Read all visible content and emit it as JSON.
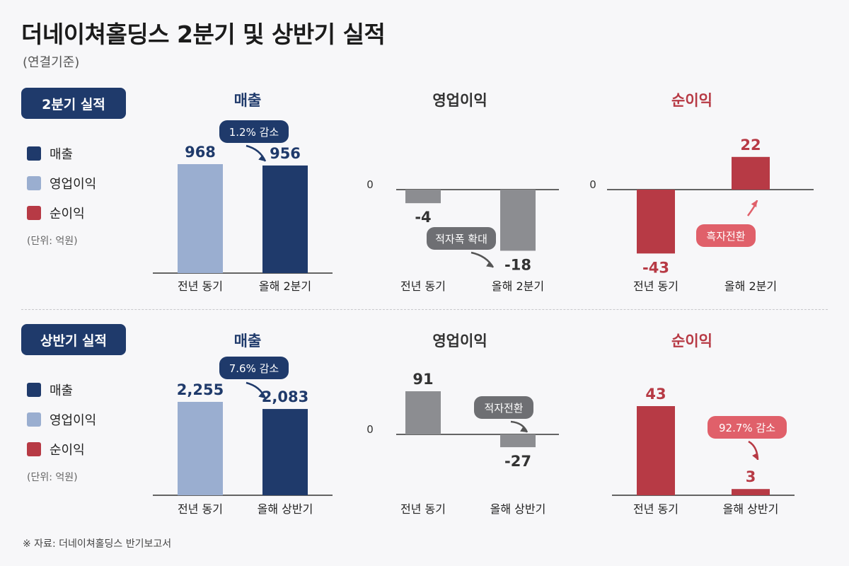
{
  "header": {
    "title": "더네이쳐홀딩스 2분기 및 상반기 실적",
    "subtitle": "(연결기준)"
  },
  "legend": [
    {
      "label": "매출",
      "color": "#1f3a6b"
    },
    {
      "label": "영업이익",
      "color": "#9aaed0"
    },
    {
      "label": "순이익",
      "color": "#b73a45"
    }
  ],
  "unit_label": "(단위: 억원)",
  "source": "※ 자료: 더네이쳐홀딩스 반기보고서",
  "colors": {
    "revenue_prev": "#9aaed0",
    "revenue_curr": "#1f3a6b",
    "op_gray": "#8c8d91",
    "net_red": "#b73a45",
    "callout_navy": "#1f3a6b",
    "callout_gray": "#6e6f73",
    "callout_red": "#e0606a"
  },
  "sections": [
    {
      "badge": "2분기 실적",
      "charts": [
        {
          "title": "매출",
          "title_color": "#1f3a6b",
          "callout": "1.2% 감소"
        },
        {
          "title": "영업이익",
          "title_color": "#333333",
          "callout": "적자폭 확대"
        },
        {
          "title": "순이익",
          "title_color": "#b73a45",
          "callout": "흑자전환"
        }
      ]
    },
    {
      "badge": "상반기 실적",
      "charts": [
        {
          "title": "매출",
          "title_color": "#1f3a6b",
          "callout": "7.6% 감소"
        },
        {
          "title": "영업이익",
          "title_color": "#333333",
          "callout": "적자전환"
        },
        {
          "title": "순이익",
          "title_color": "#b73a45",
          "callout": "92.7% 감소"
        }
      ]
    }
  ],
  "chart_data": [
    {
      "type": "bar",
      "title": "매출",
      "categories": [
        "전년 동기",
        "올해 2분기"
      ],
      "values": [
        968,
        956
      ],
      "labels": [
        "968",
        "956"
      ]
    },
    {
      "type": "bar",
      "title": "영업이익",
      "categories": [
        "전년 동기",
        "올해 2분기"
      ],
      "values": [
        -4,
        -18
      ],
      "labels": [
        "-4",
        "-18"
      ],
      "zero_label": "0"
    },
    {
      "type": "bar",
      "title": "순이익",
      "categories": [
        "전년 동기",
        "올해 2분기"
      ],
      "values": [
        -43,
        22
      ],
      "labels": [
        "-43",
        "22"
      ],
      "zero_label": "0"
    },
    {
      "type": "bar",
      "title": "매출",
      "categories": [
        "전년 동기",
        "올해 상반기"
      ],
      "values": [
        2255,
        2083
      ],
      "labels": [
        "2,255",
        "2,083"
      ]
    },
    {
      "type": "bar",
      "title": "영업이익",
      "categories": [
        "전년 동기",
        "올해 상반기"
      ],
      "values": [
        91,
        -27
      ],
      "labels": [
        "91",
        "-27"
      ],
      "zero_label": "0"
    },
    {
      "type": "bar",
      "title": "순이익",
      "categories": [
        "전년 동기",
        "올해 상반기"
      ],
      "values": [
        43,
        3
      ],
      "labels": [
        "43",
        "3"
      ]
    }
  ]
}
